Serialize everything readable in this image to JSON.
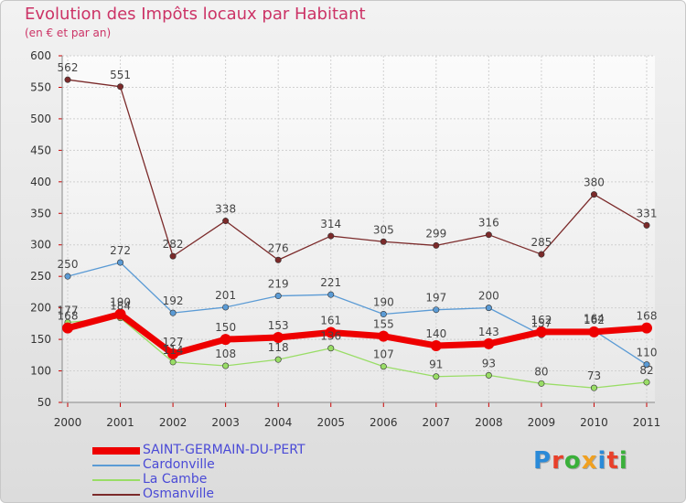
{
  "title": "Evolution des Impôts locaux par Habitant",
  "subtitle": "(en € et par an)",
  "logo": {
    "text": "Proxiti",
    "letters": [
      "P",
      "r",
      "o",
      "x",
      "i",
      "t",
      "i"
    ],
    "colors": [
      "#2a8ad8",
      "#e8402a",
      "#3ab03a",
      "#f0a020",
      "#2a8ad8",
      "#e8402a",
      "#3ab03a"
    ]
  },
  "chart_data": {
    "type": "line",
    "title": "Evolution des Impôts locaux par Habitant",
    "subtitle": "(en € et par an)",
    "xlabel": "",
    "ylabel": "",
    "categories": [
      "2000",
      "2001",
      "2002",
      "2003",
      "2004",
      "2005",
      "2006",
      "2007",
      "2008",
      "2009",
      "2010",
      "2011"
    ],
    "ylim": [
      50,
      600
    ],
    "yticks": [
      50,
      100,
      150,
      200,
      250,
      300,
      350,
      400,
      450,
      500,
      550,
      600
    ],
    "grid": true,
    "legend_position": "bottom-left",
    "series": [
      {
        "name": "SAINT-GERMAIN-DU-PERT",
        "color": "#ee0000",
        "thick": true,
        "values": [
          168,
          190,
          127,
          150,
          153,
          161,
          155,
          140,
          143,
          162,
          162,
          168
        ],
        "labels": [
          "168",
          "190",
          "127",
          "150",
          "153",
          "161",
          "155",
          "140",
          "143",
          "162",
          "162",
          "168"
        ]
      },
      {
        "name": "Cardonville",
        "color": "#5b9bd5",
        "thick": false,
        "values": [
          250,
          272,
          192,
          201,
          219,
          221,
          190,
          197,
          200,
          157,
          164,
          110
        ],
        "labels": [
          "250",
          "272",
          "192",
          "201",
          "219",
          "221",
          "190",
          "197",
          "200",
          "157",
          "164",
          "110"
        ]
      },
      {
        "name": "La Cambe",
        "color": "#99dd66",
        "thick": false,
        "values": [
          177,
          184,
          114,
          108,
          118,
          136,
          107,
          91,
          93,
          80,
          73,
          82
        ],
        "labels": [
          "177",
          "184",
          "114",
          "108",
          "118",
          "136",
          "107",
          "91",
          "93",
          "80",
          "73",
          "82"
        ]
      },
      {
        "name": "Osmanville",
        "color": "#7b2a2a",
        "thick": false,
        "values": [
          562,
          551,
          282,
          338,
          276,
          314,
          305,
          299,
          316,
          285,
          380,
          331
        ],
        "labels": [
          "562",
          "551",
          "282",
          "338",
          "276",
          "314",
          "305",
          "299",
          "316",
          "285",
          "380",
          "331"
        ]
      }
    ]
  }
}
